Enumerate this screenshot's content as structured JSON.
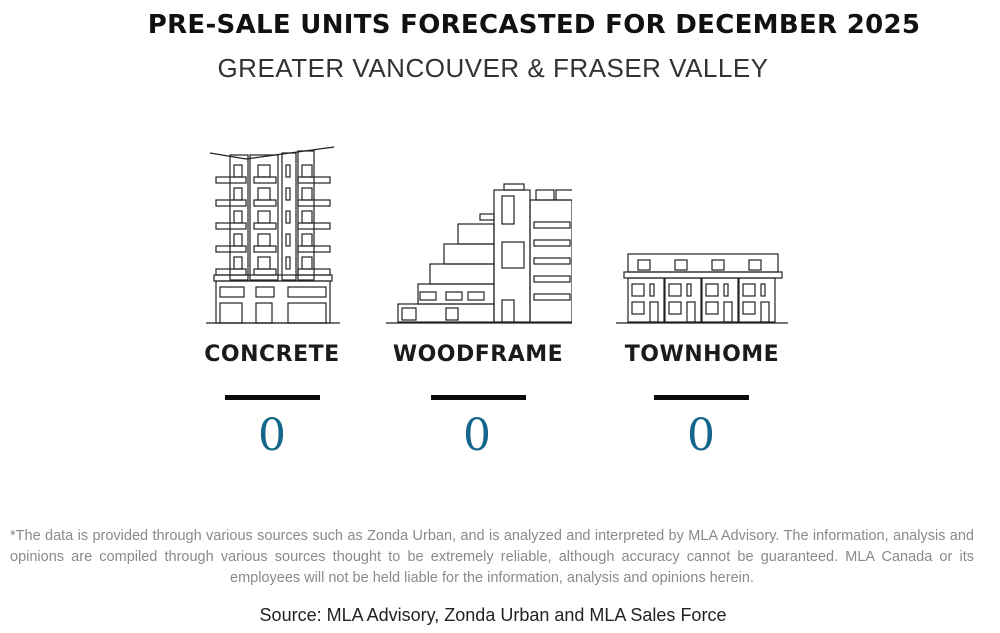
{
  "header": {
    "title": "PRE-SALE UNITS FORECASTED FOR DECEMBER 2025",
    "subtitle": "GREATER VANCOUVER & FRASER VALLEY"
  },
  "categories": [
    {
      "label": "CONCRETE",
      "value": "0",
      "icon": "concrete-tower-icon"
    },
    {
      "label": "WOODFRAME",
      "value": "0",
      "icon": "woodframe-building-icon"
    },
    {
      "label": "TOWNHOME",
      "value": "0",
      "icon": "townhome-row-icon"
    }
  ],
  "colors": {
    "value": "#14668a",
    "text": "#1b1b1b",
    "disclaimer": "#8a8a8a"
  },
  "footer": {
    "disclaimer": "*The data is provided through various sources such as Zonda Urban, and is analyzed and interpreted by MLA Advisory. The information, analysis and opinions are compiled through various sources thought to be extremely reliable, although accuracy cannot be guaranteed. MLA Canada or its employees will not be held liable for the information, analysis and opinions herein.",
    "source": "Source: MLA Advisory, Zonda Urban and MLA Sales Force"
  }
}
